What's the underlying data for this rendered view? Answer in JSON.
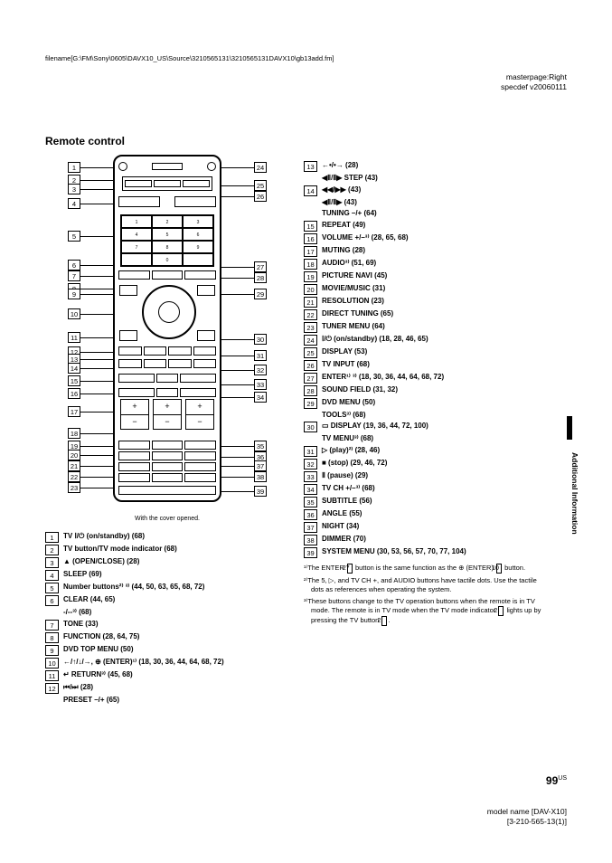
{
  "header": {
    "filepath": "filename[G:\\FM\\Sony\\0605\\DAVX10_US\\Source\\3210565131\\3210565131DAVX10\\gb13add.fm]",
    "masterpage": "masterpage:Right",
    "specdef": "specdef v20060111"
  },
  "section_title": "Remote control",
  "remote": {
    "caption": "With the cover opened."
  },
  "callouts_left": [
    "1",
    "2",
    "3",
    "4",
    "5",
    "6",
    "7",
    "8",
    "9",
    "10",
    "11",
    "12",
    "13",
    "14",
    "15",
    "16",
    "17",
    "18",
    "19",
    "20",
    "21",
    "22",
    "23"
  ],
  "callouts_right": [
    "24",
    "25",
    "26",
    "27",
    "28",
    "29",
    "30",
    "31",
    "32",
    "33",
    "34",
    "35",
    "36",
    "37",
    "38",
    "39"
  ],
  "list_left": [
    {
      "n": "1",
      "t": "TV Ⅰ/⏻ (on/standby) (68)"
    },
    {
      "n": "2",
      "t": "TV button/TV mode indicator (68)"
    },
    {
      "n": "3",
      "t": "▲ (OPEN/CLOSE) (28)"
    },
    {
      "n": "4",
      "t": "SLEEP (69)"
    },
    {
      "n": "5",
      "t": "Number buttons²⁾ ³⁾ (44, 50, 63, 65, 68, 72)"
    },
    {
      "n": "6",
      "t": "CLEAR (44, 65)",
      "sub": "-/--³⁾ (68)"
    },
    {
      "n": "7",
      "t": "TONE (33)"
    },
    {
      "n": "8",
      "t": "FUNCTION (28, 64, 75)"
    },
    {
      "n": "9",
      "t": "DVD TOP MENU (50)"
    },
    {
      "n": "10",
      "t": "←/↑/↓/→, ⊕ (ENTER)¹⁾ (18, 30, 36, 44, 64, 68, 72)"
    },
    {
      "n": "11",
      "t": "↵ RETURN³⁾ (45, 68)"
    },
    {
      "n": "12",
      "t": "⏮/⏭ (28)",
      "sub": "PRESET –/+ (65)"
    }
  ],
  "list_right": [
    {
      "n": "13",
      "t": "←•/•→  (28)",
      "sub": "◀Ⅱ/Ⅱ▶ STEP (43)"
    },
    {
      "n": "14",
      "t": "◀◀/▶▶ (43)",
      "sub": "◀Ⅱ/Ⅱ▶ (43)",
      "sub2": "TUNING –/+ (64)"
    },
    {
      "n": "15",
      "t": "REPEAT (49)"
    },
    {
      "n": "16",
      "t": "VOLUME +/–³⁾ (28, 65, 68)"
    },
    {
      "n": "17",
      "t": "MUTING (28)"
    },
    {
      "n": "18",
      "t": "AUDIO³⁾ (51, 69)"
    },
    {
      "n": "19",
      "t": "PICTURE NAVI (45)"
    },
    {
      "n": "20",
      "t": "MOVIE/MUSIC (31)"
    },
    {
      "n": "21",
      "t": "RESOLUTION (23)"
    },
    {
      "n": "22",
      "t": "DIRECT TUNING (65)"
    },
    {
      "n": "23",
      "t": "TUNER MENU (64)"
    },
    {
      "n": "24",
      "t": "Ⅰ/⏻ (on/standby) (18, 28, 46, 65)"
    },
    {
      "n": "25",
      "t": "DISPLAY (53)"
    },
    {
      "n": "26",
      "t": "TV INPUT (68)"
    },
    {
      "n": "27",
      "t": "ENTER¹⁾ ³⁾ (18, 30, 36, 44, 64, 68, 72)"
    },
    {
      "n": "28",
      "t": "SOUND FIELD (31, 32)"
    },
    {
      "n": "29",
      "t": "DVD MENU (50)",
      "sub": "TOOLS³⁾ (68)"
    },
    {
      "n": "30",
      "t": "▭ DISPLAY (19, 36, 44, 72, 100)",
      "sub": "TV MENU³⁾ (68)"
    },
    {
      "n": "31",
      "t": "▷ (play)²⁾ (28, 46)"
    },
    {
      "n": "32",
      "t": "■ (stop) (29, 46, 72)"
    },
    {
      "n": "33",
      "t": "Ⅱ (pause) (29)"
    },
    {
      "n": "34",
      "t": "TV CH +/–³⁾ (68)"
    },
    {
      "n": "35",
      "t": "SUBTITLE (56)"
    },
    {
      "n": "36",
      "t": "ANGLE (55)"
    },
    {
      "n": "37",
      "t": "NIGHT (34)"
    },
    {
      "n": "38",
      "t": "DIMMER (70)"
    },
    {
      "n": "39",
      "t": "SYSTEM MENU (30, 53, 56, 57, 70, 77, 104)"
    }
  ],
  "footnotes": {
    "f1_a": "¹⁾The ENTER ",
    "f1_box": "27",
    "f1_b": " button is the same function as the ⊕ (ENTER) ",
    "f1_box2": "10",
    "f1_c": " button.",
    "f2": "²⁾The 5, ▷, and TV CH +, and AUDIO buttons have tactile dots. Use the tactile dots as references when operating the system.",
    "f3_a": "³⁾These buttons change to the TV operation buttons when the remote is in TV mode. The remote is in TV mode when the TV mode indicator ",
    "f3_box": "2",
    "f3_b": " lights up by pressing the TV button ",
    "f3_box2": "2",
    "f3_c": "."
  },
  "side_label": "Additional Information",
  "page_number": "99",
  "page_suffix": "US",
  "footer": {
    "model": "model name [DAV-X10]",
    "partno": "[3-210-565-13(1)]"
  }
}
